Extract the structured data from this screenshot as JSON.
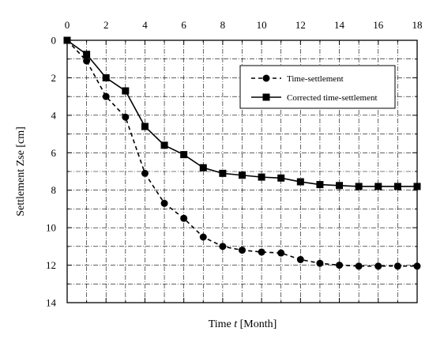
{
  "chart_data": {
    "type": "line",
    "title": "",
    "xlabel_prefix": "Time ",
    "xlabel_var": "t",
    "xlabel_suffix": " [Month]",
    "ylabel": "Settlement Zse [cm]",
    "xlim": [
      0,
      18
    ],
    "ylim": [
      0,
      14
    ],
    "y_inverted": true,
    "x_axis_position": "top",
    "x_ticks": [
      0,
      2,
      4,
      6,
      8,
      10,
      12,
      14,
      16,
      18
    ],
    "y_ticks": [
      0,
      2,
      4,
      6,
      8,
      10,
      12,
      14
    ],
    "grid": "dash-dot",
    "legend_position": "upper-right",
    "x": [
      0,
      1,
      2,
      3,
      4,
      5,
      6,
      7,
      8,
      9,
      10,
      11,
      12,
      13,
      14,
      15,
      16,
      17,
      18
    ],
    "series": [
      {
        "name": "Time-settlement",
        "line_style": "dashed",
        "marker": "circle",
        "values": [
          0,
          1.1,
          3.0,
          4.1,
          7.1,
          8.7,
          9.5,
          10.5,
          11.0,
          11.2,
          11.3,
          11.35,
          11.7,
          11.9,
          12.0,
          12.05,
          12.05,
          12.05,
          12.05
        ]
      },
      {
        "name": "Corrected time-settlement",
        "line_style": "solid",
        "marker": "square",
        "values": [
          0,
          0.75,
          2.0,
          2.7,
          4.6,
          5.6,
          6.1,
          6.8,
          7.1,
          7.2,
          7.3,
          7.35,
          7.55,
          7.7,
          7.75,
          7.8,
          7.8,
          7.8,
          7.8
        ]
      }
    ]
  }
}
